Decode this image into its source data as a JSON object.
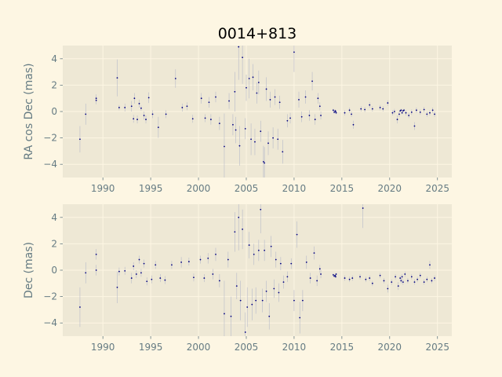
{
  "chart_data": {
    "type": "scatter",
    "title": "0014+813",
    "x_axis": {
      "ticks": [
        1990,
        1995,
        2000,
        2005,
        2010,
        2015,
        2020,
        2025
      ]
    },
    "colors": {
      "background": "#fdf6e3",
      "axes_face": "#eee8d5",
      "grid": "#fdf6e3",
      "marker": "#000080",
      "errorbar": "#b6b9c9",
      "text": "#657b83"
    },
    "grid": true,
    "panels": [
      {
        "name": "ra",
        "ylabel": "RA cos Dec (mas)",
        "xlim": [
          1985.8,
          2026.5
        ],
        "ylim": [
          -5,
          5
        ],
        "yticks": [
          -4,
          -2,
          0,
          2,
          4
        ],
        "points": [
          [
            1987.6,
            -2.1,
            1.0
          ],
          [
            1988.2,
            -0.2,
            0.8
          ],
          [
            1989.3,
            1.0,
            0.3
          ],
          [
            1989.3,
            0.85,
            0.3
          ],
          [
            1991.5,
            2.55,
            1.4
          ],
          [
            1991.7,
            0.3,
            0.2
          ],
          [
            1992.3,
            0.3,
            0.3
          ],
          [
            1993.0,
            0.4,
            0.4
          ],
          [
            1993.2,
            -0.55,
            0.3
          ],
          [
            1993.3,
            1.0,
            0.4
          ],
          [
            1993.6,
            -0.6,
            0.3
          ],
          [
            1993.8,
            0.6,
            0.3
          ],
          [
            1994.0,
            0.25,
            0.2
          ],
          [
            1994.3,
            -0.3,
            0.3
          ],
          [
            1994.5,
            -0.6,
            0.3
          ],
          [
            1994.8,
            1.05,
            0.4
          ],
          [
            1995.2,
            -0.2,
            0.3
          ],
          [
            1995.8,
            -1.2,
            0.8
          ],
          [
            1996.6,
            -0.2,
            0.3
          ],
          [
            1997.6,
            2.5,
            0.7
          ],
          [
            1998.3,
            0.3,
            0.3
          ],
          [
            1998.8,
            0.4,
            0.3
          ],
          [
            1999.4,
            -0.55,
            0.3
          ],
          [
            2000.3,
            1.0,
            0.4
          ],
          [
            2000.7,
            -0.5,
            0.3
          ],
          [
            2001.1,
            0.7,
            0.4
          ],
          [
            2001.3,
            -0.6,
            0.4
          ],
          [
            2001.8,
            1.1,
            0.4
          ],
          [
            2002.2,
            -0.9,
            0.5
          ],
          [
            2002.7,
            -2.65,
            2.5
          ],
          [
            2003.2,
            0.8,
            0.6
          ],
          [
            2003.6,
            -1.0,
            0.8
          ],
          [
            2003.8,
            1.5,
            1.5
          ],
          [
            2003.9,
            -1.4,
            1.0
          ],
          [
            2004.2,
            4.9,
            2.5
          ],
          [
            2004.3,
            -2.6,
            1.5
          ],
          [
            2004.6,
            4.1,
            2.0
          ],
          [
            2004.9,
            -1.3,
            0.8
          ],
          [
            2005.0,
            1.8,
            1.0
          ],
          [
            2005.3,
            2.5,
            1.5
          ],
          [
            2005.5,
            -2.1,
            1.2
          ],
          [
            2005.7,
            2.6,
            1.0
          ],
          [
            2005.9,
            -2.3,
            1.0
          ],
          [
            2006.1,
            1.4,
            0.8
          ],
          [
            2006.3,
            2.2,
            0.9
          ],
          [
            2006.5,
            -1.5,
            0.8
          ],
          [
            2006.8,
            -3.8,
            1.2
          ],
          [
            2006.9,
            -3.9,
            1.2
          ],
          [
            2007.1,
            1.7,
            0.9
          ],
          [
            2007.3,
            -2.4,
            0.9
          ],
          [
            2007.5,
            0.9,
            0.6
          ],
          [
            2007.8,
            -2.0,
            0.8
          ],
          [
            2008.0,
            1.1,
            0.6
          ],
          [
            2008.3,
            -2.1,
            0.8
          ],
          [
            2008.5,
            0.7,
            0.5
          ],
          [
            2008.8,
            -3.05,
            0.9
          ],
          [
            2009.3,
            -0.7,
            0.5
          ],
          [
            2009.6,
            -0.5,
            0.4
          ],
          [
            2010.0,
            4.5,
            1.5
          ],
          [
            2010.5,
            0.9,
            0.6
          ],
          [
            2010.8,
            -0.4,
            0.4
          ],
          [
            2011.2,
            1.1,
            0.5
          ],
          [
            2011.6,
            -0.3,
            0.4
          ],
          [
            2011.9,
            2.3,
            0.7
          ],
          [
            2012.2,
            -0.6,
            0.4
          ],
          [
            2012.7,
            0.4,
            0.3
          ],
          [
            2012.8,
            -0.3,
            0.3
          ],
          [
            2012.5,
            1.0,
            0.4
          ],
          [
            2014.1,
            0.1,
            0.1
          ],
          [
            2014.2,
            -0.05,
            0.1
          ],
          [
            2014.3,
            0.05,
            0.1
          ],
          [
            2014.35,
            0.0,
            0.1
          ],
          [
            2014.4,
            -0.1,
            0.1
          ],
          [
            2015.3,
            -0.1,
            0.2
          ],
          [
            2015.8,
            0.1,
            0.2
          ],
          [
            2016.0,
            -0.2,
            0.2
          ],
          [
            2016.2,
            -1.0,
            0.3
          ],
          [
            2017.0,
            0.2,
            0.2
          ],
          [
            2017.4,
            0.15,
            0.2
          ],
          [
            2017.9,
            0.5,
            0.2
          ],
          [
            2018.2,
            0.2,
            0.2
          ],
          [
            2019.0,
            0.3,
            0.2
          ],
          [
            2019.3,
            0.2,
            0.2
          ],
          [
            2019.8,
            0.65,
            0.2
          ],
          [
            2020.3,
            -0.1,
            0.2
          ],
          [
            2020.5,
            0.0,
            0.2
          ],
          [
            2020.8,
            -0.6,
            0.3
          ],
          [
            2021.0,
            -0.2,
            0.2
          ],
          [
            2021.1,
            0.05,
            0.1
          ],
          [
            2021.2,
            0.1,
            0.1
          ],
          [
            2021.3,
            -0.1,
            0.1
          ],
          [
            2021.4,
            0.05,
            0.1
          ],
          [
            2021.5,
            0.1,
            0.1
          ],
          [
            2021.7,
            -0.1,
            0.2
          ],
          [
            2022.0,
            -0.3,
            0.2
          ],
          [
            2022.3,
            -0.05,
            0.2
          ],
          [
            2022.6,
            -1.1,
            0.3
          ],
          [
            2022.8,
            0.1,
            0.2
          ],
          [
            2023.2,
            -0.05,
            0.2
          ],
          [
            2023.6,
            0.15,
            0.2
          ],
          [
            2023.9,
            -0.2,
            0.2
          ],
          [
            2024.2,
            -0.1,
            0.2
          ],
          [
            2024.5,
            0.1,
            0.2
          ],
          [
            2024.7,
            -0.2,
            0.2
          ]
        ]
      },
      {
        "name": "dec",
        "ylabel": "Dec (mas)",
        "xlim": [
          1985.8,
          2026.5
        ],
        "ylim": [
          -5,
          5
        ],
        "yticks": [
          -4,
          -2,
          0,
          2,
          4
        ],
        "points": [
          [
            1987.6,
            -2.8,
            1.5
          ],
          [
            1988.2,
            -0.2,
            0.8
          ],
          [
            1989.3,
            1.2,
            0.4
          ],
          [
            1989.3,
            0.0,
            0.4
          ],
          [
            1991.5,
            -1.3,
            1.2
          ],
          [
            1991.7,
            -0.1,
            0.3
          ],
          [
            1992.3,
            -0.05,
            0.3
          ],
          [
            1993.0,
            -0.6,
            0.4
          ],
          [
            1993.2,
            0.3,
            0.3
          ],
          [
            1993.5,
            -0.3,
            0.3
          ],
          [
            1993.8,
            0.8,
            0.3
          ],
          [
            1994.0,
            -0.2,
            0.3
          ],
          [
            1994.3,
            0.5,
            0.3
          ],
          [
            1994.6,
            -0.85,
            0.3
          ],
          [
            1995.1,
            -0.7,
            0.3
          ],
          [
            1995.5,
            0.4,
            0.3
          ],
          [
            1996.0,
            -0.6,
            0.3
          ],
          [
            1996.5,
            -0.75,
            0.3
          ],
          [
            1997.2,
            0.4,
            0.3
          ],
          [
            1998.2,
            0.6,
            0.4
          ],
          [
            1999.0,
            0.65,
            0.3
          ],
          [
            1999.5,
            -0.55,
            0.3
          ],
          [
            2000.2,
            0.8,
            0.3
          ],
          [
            2000.6,
            -0.6,
            0.3
          ],
          [
            2001.0,
            0.9,
            0.4
          ],
          [
            2001.5,
            -0.3,
            0.4
          ],
          [
            2001.8,
            1.2,
            0.5
          ],
          [
            2002.2,
            -0.8,
            0.5
          ],
          [
            2002.7,
            -3.3,
            2.5
          ],
          [
            2003.1,
            0.8,
            0.6
          ],
          [
            2003.4,
            -3.5,
            1.5
          ],
          [
            2003.8,
            2.9,
            1.5
          ],
          [
            2004.0,
            -1.2,
            1.0
          ],
          [
            2004.2,
            4.0,
            2.5
          ],
          [
            2004.4,
            -2.3,
            1.5
          ],
          [
            2004.6,
            3.1,
            1.5
          ],
          [
            2004.9,
            -4.7,
            1.5
          ],
          [
            2005.1,
            -2.8,
            1.5
          ],
          [
            2005.3,
            1.9,
            1.0
          ],
          [
            2005.6,
            -2.6,
            1.2
          ],
          [
            2005.8,
            1.2,
            0.8
          ],
          [
            2006.0,
            -2.3,
            1.0
          ],
          [
            2006.3,
            1.5,
            0.8
          ],
          [
            2006.5,
            4.6,
            1.8
          ],
          [
            2006.7,
            -2.3,
            0.9
          ],
          [
            2006.9,
            1.5,
            0.8
          ],
          [
            2007.1,
            -1.6,
            0.8
          ],
          [
            2007.4,
            -3.5,
            1.0
          ],
          [
            2007.6,
            1.8,
            0.8
          ],
          [
            2007.9,
            -1.4,
            0.7
          ],
          [
            2008.1,
            0.8,
            0.6
          ],
          [
            2008.4,
            -1.7,
            0.7
          ],
          [
            2008.6,
            0.5,
            0.5
          ],
          [
            2008.9,
            -0.9,
            0.5
          ],
          [
            2009.3,
            -0.5,
            0.4
          ],
          [
            2009.7,
            0.5,
            0.4
          ],
          [
            2010.0,
            -2.3,
            0.8
          ],
          [
            2010.3,
            2.7,
            1.0
          ],
          [
            2010.6,
            -3.6,
            1.2
          ],
          [
            2010.9,
            -2.3,
            0.8
          ],
          [
            2011.3,
            0.6,
            0.5
          ],
          [
            2011.7,
            -0.6,
            0.4
          ],
          [
            2012.1,
            1.3,
            0.5
          ],
          [
            2012.4,
            -0.8,
            0.4
          ],
          [
            2012.7,
            0.1,
            0.3
          ],
          [
            2012.8,
            -0.3,
            0.3
          ],
          [
            2014.1,
            -0.35,
            0.1
          ],
          [
            2014.2,
            -0.45,
            0.1
          ],
          [
            2014.3,
            -0.4,
            0.1
          ],
          [
            2014.35,
            -0.5,
            0.1
          ],
          [
            2014.4,
            -0.3,
            0.1
          ],
          [
            2015.3,
            -0.6,
            0.2
          ],
          [
            2015.8,
            -0.7,
            0.2
          ],
          [
            2016.1,
            -0.6,
            0.2
          ],
          [
            2016.9,
            -0.5,
            0.2
          ],
          [
            2017.2,
            4.7,
            1.5
          ],
          [
            2017.5,
            -0.7,
            0.2
          ],
          [
            2017.9,
            -0.6,
            0.2
          ],
          [
            2018.2,
            -1.0,
            0.2
          ],
          [
            2019.0,
            -0.4,
            0.2
          ],
          [
            2019.4,
            -0.8,
            0.2
          ],
          [
            2019.8,
            -1.4,
            0.3
          ],
          [
            2020.2,
            -0.9,
            0.2
          ],
          [
            2020.6,
            -0.5,
            0.2
          ],
          [
            2020.9,
            -1.2,
            0.3
          ],
          [
            2021.1,
            -0.6,
            0.2
          ],
          [
            2021.2,
            -0.8,
            0.2
          ],
          [
            2021.3,
            -0.5,
            0.2
          ],
          [
            2021.4,
            -0.9,
            0.2
          ],
          [
            2021.6,
            -0.3,
            0.2
          ],
          [
            2021.9,
            -0.8,
            0.2
          ],
          [
            2022.3,
            -0.5,
            0.2
          ],
          [
            2022.6,
            -0.9,
            0.2
          ],
          [
            2022.9,
            -0.7,
            0.2
          ],
          [
            2023.2,
            -0.4,
            0.2
          ],
          [
            2023.6,
            -0.9,
            0.2
          ],
          [
            2023.9,
            -0.7,
            0.2
          ],
          [
            2024.2,
            0.4,
            0.3
          ],
          [
            2024.4,
            -0.8,
            0.2
          ],
          [
            2024.7,
            -0.6,
            0.2
          ]
        ]
      }
    ]
  }
}
